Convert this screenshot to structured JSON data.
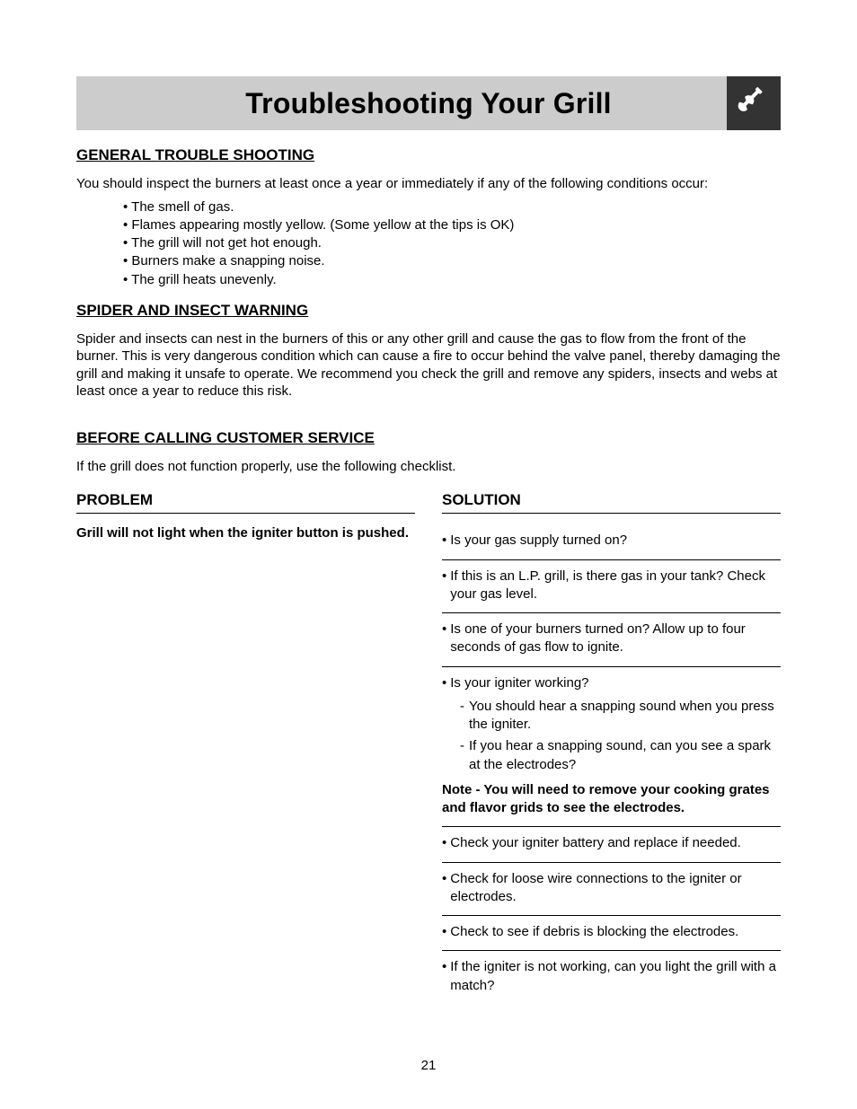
{
  "title": "Troubleshooting Your Grill",
  "icon_name": "wrench-icon",
  "colors": {
    "title_bar_bg": "#cccccc",
    "icon_bg": "#333333",
    "text": "#000000",
    "page_bg": "#ffffff",
    "rule": "#000000"
  },
  "typography": {
    "title_fontsize": 32,
    "section_fontsize": 17,
    "body_fontsize": 15,
    "font_family": "Arial"
  },
  "sections": {
    "general": {
      "heading": "GENERAL TROUBLE SHOOTING",
      "intro": "You should inspect the burners at least once a year or immediately if any of the following conditions occur:",
      "bullets": [
        "The smell of gas.",
        "Flames appearing mostly yellow. (Some yellow at the tips is OK)",
        "The grill will not get hot enough.",
        "Burners make a snapping noise.",
        "The grill heats unevenly."
      ]
    },
    "spider": {
      "heading": "SPIDER AND INSECT WARNING",
      "body": "Spider and insects can nest in the burners of this or any other grill and cause the gas to flow from the front of the burner. This is very dangerous condition which can cause a fire to occur behind the valve panel, thereby damaging the grill and making it unsafe to operate. We recommend you check the grill and remove any spiders, insects and webs at least once a year to reduce this risk."
    },
    "before": {
      "heading": "BEFORE CALLING CUSTOMER SERVICE",
      "body": "If the grill does not function properly, use the following checklist."
    }
  },
  "table": {
    "problem_header": "PROBLEM",
    "solution_header": "SOLUTION",
    "problem": "Grill will not light when the igniter button is pushed.",
    "solutions": [
      {
        "text": "Is your gas supply turned on?"
      },
      {
        "text": "If this is an L.P. grill, is there gas in your tank? Check your gas level."
      },
      {
        "text": "Is one of your burners turned on? Allow up to four seconds of gas flow to ignite."
      },
      {
        "text": "Is your igniter working?",
        "sub": [
          "You should hear a snapping sound when you press the igniter.",
          "If you hear a snapping sound, can you see a spark at the electrodes?"
        ],
        "note": "Note - You will need to remove your cooking grates and flavor grids to see the electrodes."
      },
      {
        "text": "Check your igniter battery and replace if needed."
      },
      {
        "text": "Check for loose wire connections to the igniter or electrodes."
      },
      {
        "text": "Check to see if debris is blocking the electrodes."
      },
      {
        "text": "If the igniter is not working, can you light the grill with a match?",
        "last": true
      }
    ]
  },
  "page_number": "21"
}
